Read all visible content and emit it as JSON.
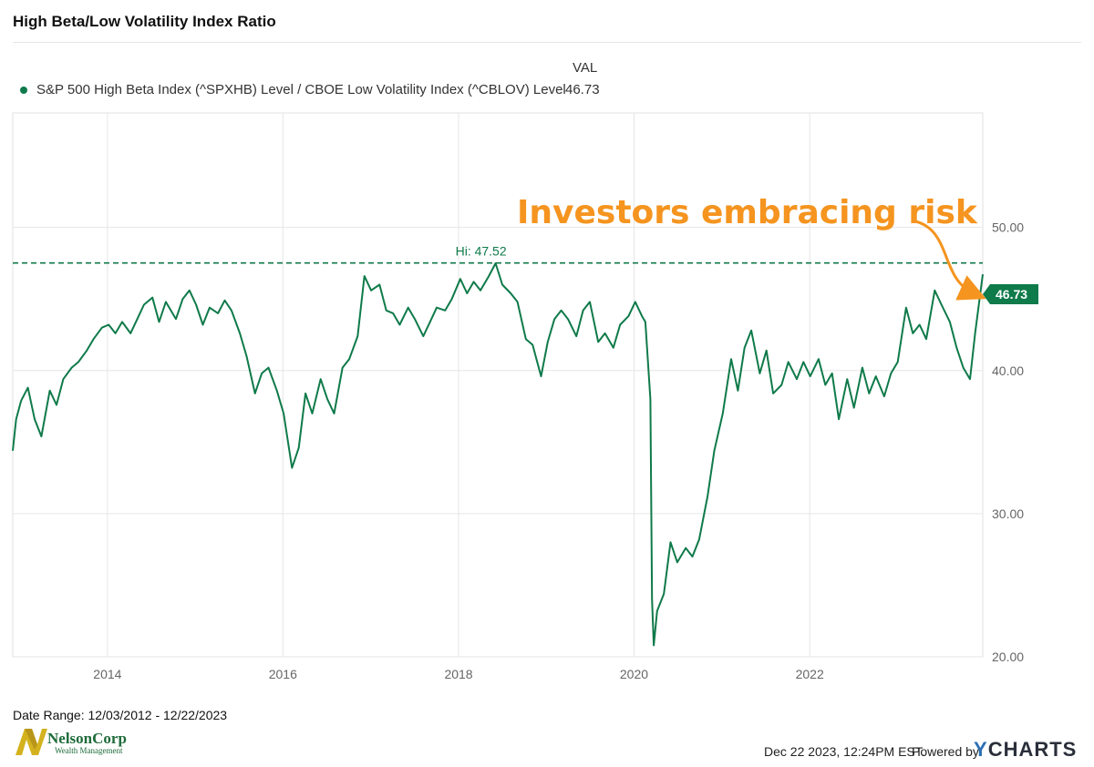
{
  "title": "High Beta/Low Volatility Index Ratio",
  "legend": {
    "column_header": "VAL",
    "series_label": "S&P 500 High Beta Index (^SPXHB) Level / CBOE Low Volatility Index (^CBLOV) Level",
    "series_value": "46.73"
  },
  "annotation": {
    "text": "Investors embracing risk",
    "color": "#f5941f",
    "hi_label": "Hi: 47.52",
    "end_badge": "46.73"
  },
  "footer": {
    "date_range": "Date Range: 12/03/2012 - 12/22/2023",
    "timestamp": "Dec 22 2023, 12:24PM EST.",
    "powered_by": "Powered by",
    "brand_y": "Y",
    "brand_rest": "CHARTS",
    "logo_name": "NelsonCorp",
    "logo_sub": "Wealth Management"
  },
  "colors": {
    "line": "#0f7a4a",
    "grid": "#e6e6e6",
    "accent": "#f5941f"
  },
  "chart_data": {
    "type": "line",
    "x_axis": {
      "ticks": [
        "2014",
        "2016",
        "2018",
        "2020",
        "2022"
      ],
      "range": [
        "2012-12-03",
        "2023-12-22"
      ]
    },
    "y_axis": {
      "ticks": [
        "20.00",
        "30.00",
        "40.00",
        "50.00"
      ],
      "ylim": [
        20,
        58
      ],
      "position": "right"
    },
    "reference_line": {
      "value": 47.52,
      "label": "Hi: 47.52",
      "style": "dashed"
    },
    "grid": true,
    "series": [
      {
        "name": "S&P 500 High Beta Index (^SPXHB) Level / CBOE Low Volatility Index (^CBLOV) Level",
        "points": [
          [
            "2012-12-03",
            34.4
          ],
          [
            "2012-12-17",
            36.6
          ],
          [
            "2013-01-07",
            37.9
          ],
          [
            "2013-02-04",
            38.8
          ],
          [
            "2013-03-04",
            36.6
          ],
          [
            "2013-04-01",
            35.4
          ],
          [
            "2013-05-06",
            38.6
          ],
          [
            "2013-06-03",
            37.6
          ],
          [
            "2013-07-01",
            39.4
          ],
          [
            "2013-08-05",
            40.2
          ],
          [
            "2013-09-02",
            40.6
          ],
          [
            "2013-10-07",
            41.4
          ],
          [
            "2013-11-04",
            42.2
          ],
          [
            "2013-12-09",
            43.0
          ],
          [
            "2014-01-06",
            43.2
          ],
          [
            "2014-02-03",
            42.6
          ],
          [
            "2014-03-03",
            43.4
          ],
          [
            "2014-04-07",
            42.6
          ],
          [
            "2014-05-05",
            43.6
          ],
          [
            "2014-06-02",
            44.6
          ],
          [
            "2014-07-07",
            45.1
          ],
          [
            "2014-08-04",
            43.4
          ],
          [
            "2014-09-01",
            44.8
          ],
          [
            "2014-10-13",
            43.6
          ],
          [
            "2014-11-10",
            45.0
          ],
          [
            "2014-12-08",
            45.6
          ],
          [
            "2015-01-05",
            44.6
          ],
          [
            "2015-02-02",
            43.2
          ],
          [
            "2015-03-02",
            44.4
          ],
          [
            "2015-04-06",
            44.0
          ],
          [
            "2015-05-04",
            44.9
          ],
          [
            "2015-06-01",
            44.2
          ],
          [
            "2015-07-06",
            42.6
          ],
          [
            "2015-08-03",
            41.0
          ],
          [
            "2015-09-07",
            38.4
          ],
          [
            "2015-10-05",
            39.8
          ],
          [
            "2015-11-02",
            40.2
          ],
          [
            "2015-12-07",
            38.6
          ],
          [
            "2016-01-04",
            37.0
          ],
          [
            "2016-02-08",
            33.2
          ],
          [
            "2016-03-07",
            34.6
          ],
          [
            "2016-04-04",
            38.4
          ],
          [
            "2016-05-02",
            37.0
          ],
          [
            "2016-06-06",
            39.4
          ],
          [
            "2016-07-04",
            38.0
          ],
          [
            "2016-08-01",
            37.0
          ],
          [
            "2016-09-05",
            40.2
          ],
          [
            "2016-10-03",
            40.8
          ],
          [
            "2016-11-07",
            42.4
          ],
          [
            "2016-12-05",
            46.6
          ],
          [
            "2017-01-02",
            45.6
          ],
          [
            "2017-02-06",
            46.0
          ],
          [
            "2017-03-06",
            44.2
          ],
          [
            "2017-04-03",
            44.0
          ],
          [
            "2017-05-01",
            43.2
          ],
          [
            "2017-06-05",
            44.4
          ],
          [
            "2017-07-03",
            43.6
          ],
          [
            "2017-08-07",
            42.4
          ],
          [
            "2017-09-04",
            43.4
          ],
          [
            "2017-10-02",
            44.4
          ],
          [
            "2017-11-06",
            44.2
          ],
          [
            "2017-12-04",
            45.0
          ],
          [
            "2018-01-08",
            46.4
          ],
          [
            "2018-02-05",
            45.4
          ],
          [
            "2018-03-05",
            46.2
          ],
          [
            "2018-04-02",
            45.6
          ],
          [
            "2018-05-07",
            46.6
          ],
          [
            "2018-06-04",
            47.5
          ],
          [
            "2018-07-02",
            46.0
          ],
          [
            "2018-08-06",
            45.4
          ],
          [
            "2018-09-03",
            44.8
          ],
          [
            "2018-10-08",
            42.2
          ],
          [
            "2018-11-05",
            41.8
          ],
          [
            "2018-12-10",
            39.6
          ],
          [
            "2019-01-07",
            42.0
          ],
          [
            "2019-02-04",
            43.6
          ],
          [
            "2019-03-04",
            44.2
          ],
          [
            "2019-04-01",
            43.6
          ],
          [
            "2019-05-06",
            42.4
          ],
          [
            "2019-06-03",
            44.2
          ],
          [
            "2019-07-01",
            44.8
          ],
          [
            "2019-08-05",
            42.0
          ],
          [
            "2019-09-02",
            42.6
          ],
          [
            "2019-10-07",
            41.6
          ],
          [
            "2019-11-04",
            43.2
          ],
          [
            "2019-12-09",
            43.8
          ],
          [
            "2020-01-06",
            44.8
          ],
          [
            "2020-02-03",
            43.8
          ],
          [
            "2020-02-17",
            43.4
          ],
          [
            "2020-03-09",
            38.0
          ],
          [
            "2020-03-16",
            24.0
          ],
          [
            "2020-03-23",
            20.8
          ],
          [
            "2020-04-06",
            23.2
          ],
          [
            "2020-05-04",
            24.4
          ],
          [
            "2020-06-01",
            28.0
          ],
          [
            "2020-06-29",
            26.6
          ],
          [
            "2020-08-03",
            27.6
          ],
          [
            "2020-08-31",
            27.0
          ],
          [
            "2020-09-28",
            28.2
          ],
          [
            "2020-11-02",
            31.2
          ],
          [
            "2020-11-30",
            34.4
          ],
          [
            "2021-01-04",
            37.0
          ],
          [
            "2021-02-08",
            40.8
          ],
          [
            "2021-03-08",
            38.6
          ],
          [
            "2021-04-05",
            41.6
          ],
          [
            "2021-05-03",
            42.8
          ],
          [
            "2021-06-07",
            39.8
          ],
          [
            "2021-07-05",
            41.4
          ],
          [
            "2021-08-02",
            38.4
          ],
          [
            "2021-09-06",
            39.0
          ],
          [
            "2021-10-04",
            40.6
          ],
          [
            "2021-11-08",
            39.4
          ],
          [
            "2021-12-06",
            40.6
          ],
          [
            "2022-01-03",
            39.6
          ],
          [
            "2022-02-07",
            40.8
          ],
          [
            "2022-03-07",
            39.0
          ],
          [
            "2022-04-04",
            39.8
          ],
          [
            "2022-05-02",
            36.6
          ],
          [
            "2022-06-06",
            39.4
          ],
          [
            "2022-07-04",
            37.4
          ],
          [
            "2022-08-08",
            40.2
          ],
          [
            "2022-09-05",
            38.4
          ],
          [
            "2022-10-03",
            39.6
          ],
          [
            "2022-11-07",
            38.2
          ],
          [
            "2022-12-05",
            39.8
          ],
          [
            "2023-01-02",
            40.6
          ],
          [
            "2023-02-06",
            44.4
          ],
          [
            "2023-03-06",
            42.6
          ],
          [
            "2023-04-03",
            43.2
          ],
          [
            "2023-05-01",
            42.2
          ],
          [
            "2023-06-05",
            45.6
          ],
          [
            "2023-07-03",
            44.6
          ],
          [
            "2023-08-07",
            43.4
          ],
          [
            "2023-09-04",
            41.6
          ],
          [
            "2023-10-02",
            40.2
          ],
          [
            "2023-10-30",
            39.4
          ],
          [
            "2023-11-20",
            42.6
          ],
          [
            "2023-12-22",
            46.73
          ]
        ]
      }
    ]
  }
}
